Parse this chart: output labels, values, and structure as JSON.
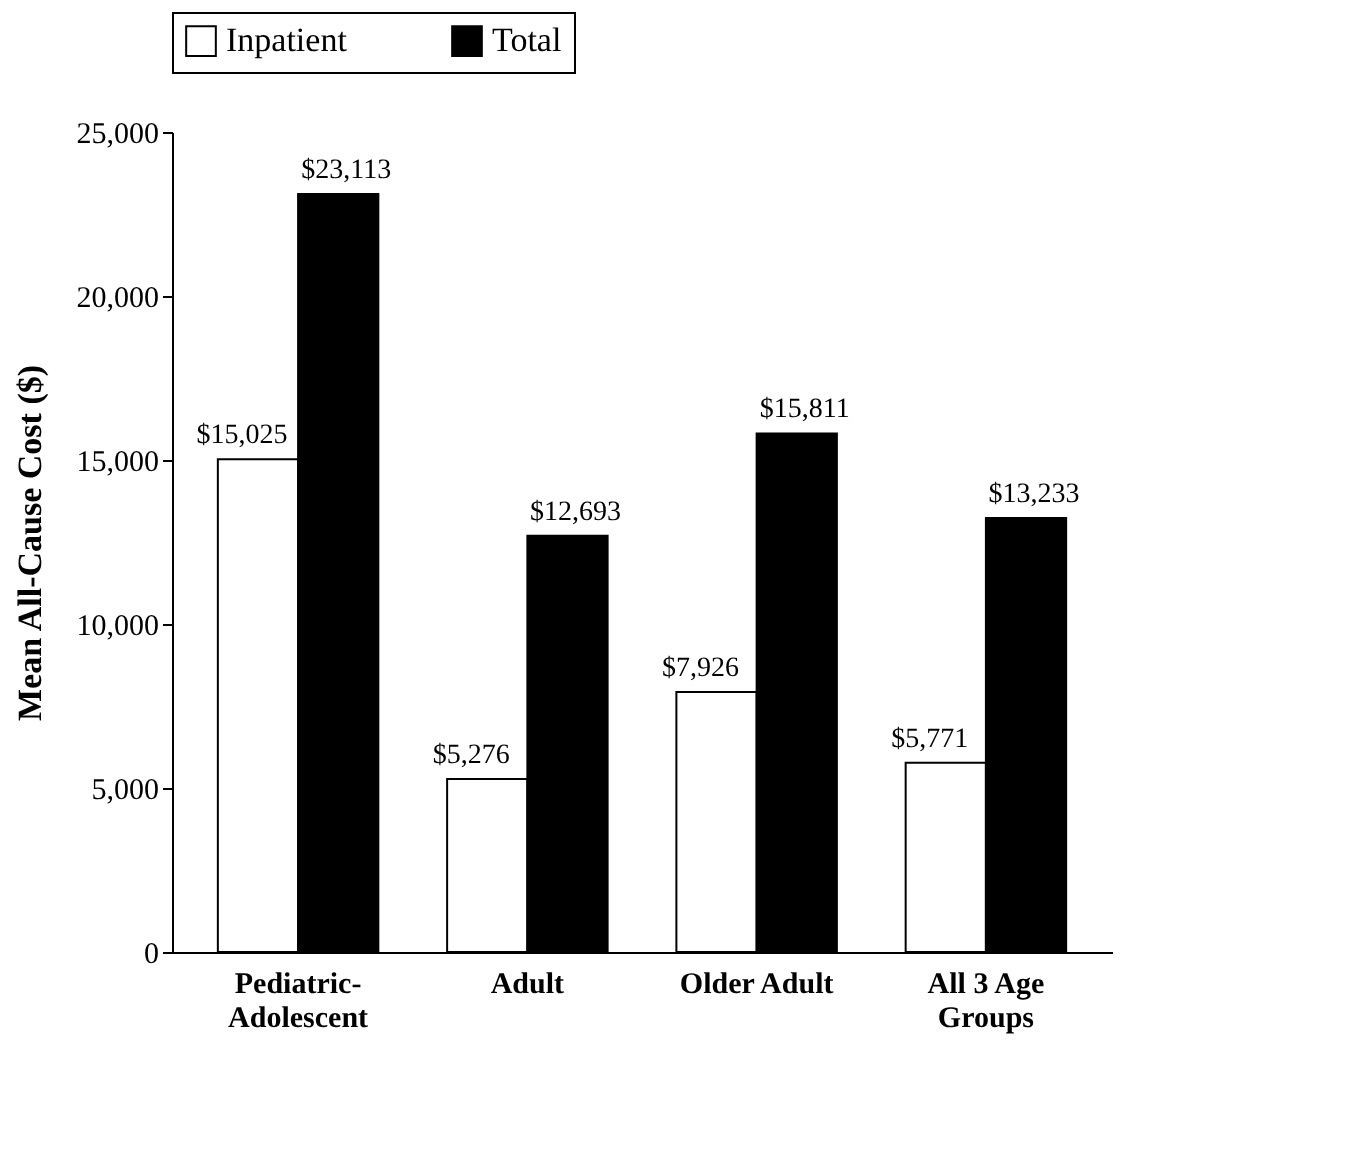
{
  "chart_data": {
    "type": "bar",
    "ylabel": "Mean All-Cause Cost ($)",
    "categories": [
      "Pediatric-\nAdolescent",
      "Adult",
      "Older Adult",
      "All 3 Age\nGroups"
    ],
    "series": [
      {
        "name": "Inpatient",
        "color": "#ffffff",
        "values": [
          15025,
          5276,
          7926,
          5771
        ],
        "value_labels": [
          "$15,025",
          "$5,276",
          "$7,926",
          "$5,771"
        ]
      },
      {
        "name": "Total",
        "color": "#000000",
        "values": [
          23113,
          12693,
          15811,
          13233
        ],
        "value_labels": [
          "$23,113",
          "$12,693",
          "$15,811",
          "$13,233"
        ]
      }
    ],
    "ylim": [
      0,
      25000
    ],
    "yticks": [
      0,
      {
        "value": 5000,
        "label": "5,000"
      },
      {
        "value": 10000,
        "label": "10,000"
      },
      {
        "value": 15000,
        "label": "15,000"
      },
      {
        "value": 20000,
        "label": "20,000"
      },
      {
        "value": 25000,
        "label": "25,000"
      }
    ],
    "grid": false,
    "legend": "top"
  }
}
